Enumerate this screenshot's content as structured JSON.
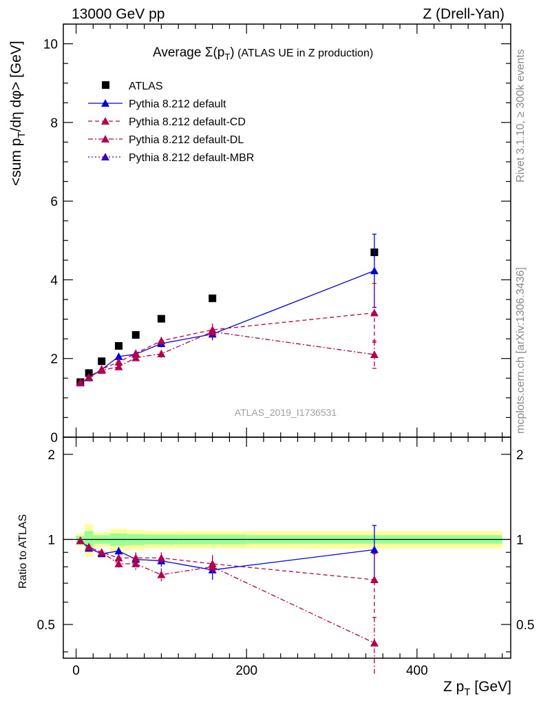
{
  "header": {
    "energy": "13000 GeV pp",
    "process": "Z (Drell-Yan)"
  },
  "side": {
    "rivet": "Rivet 3.1.10, ≥ 300k events",
    "source": "mcplots.cern.ch [arXiv:1306.3436]"
  },
  "watermark": "ATLAS_2019_I1736531",
  "colors": {
    "data": "#000000",
    "default": "#0000dd",
    "cd": "#b0004f",
    "dl": "#b0004f",
    "mbr": "#3a00b8",
    "band_outer": "#ffff99",
    "band_inner": "#99ff99"
  },
  "chart_data": [
    {
      "type": "scatter",
      "panel": "main",
      "title": "Average Σ(pT) (ATLAS UE in Z production)",
      "title_parts": {
        "lead": "Average ",
        "sigma": "Σ(p",
        "sub": "T",
        "tail": ")",
        "paren": " (ATLAS UE in Z production)"
      },
      "ylabel": "<sum pT/dη dφ> [GeV]",
      "ylabel_parts": {
        "a": "<sum p",
        "sub": "T",
        "b": "/dη dφ> [GeV]"
      },
      "xlim": [
        -15,
        510
      ],
      "ylim": [
        0,
        10.5
      ],
      "yticks": [
        0,
        2,
        4,
        6,
        8,
        10
      ],
      "legend_position": "top-left",
      "series": [
        {
          "name": "ATLAS",
          "key": "data",
          "marker": "square",
          "line": "none",
          "x": [
            5,
            15,
            30,
            50,
            70,
            100,
            160,
            350
          ],
          "y": [
            1.4,
            1.63,
            1.93,
            2.32,
            2.6,
            3.01,
            3.53,
            4.7
          ]
        },
        {
          "name": "Pythia 8.212 default",
          "key": "default",
          "marker": "triangle",
          "line": "solid",
          "x": [
            5,
            15,
            30,
            50,
            70,
            100,
            160,
            350
          ],
          "y": [
            1.38,
            1.51,
            1.72,
            2.05,
            2.11,
            2.38,
            2.62,
            4.23
          ],
          "err": [
            0.02,
            0.02,
            0.04,
            0.06,
            0.08,
            0.1,
            0.16,
            0.93
          ]
        },
        {
          "name": "Pythia 8.212 default-CD",
          "key": "cd",
          "marker": "triangle",
          "line": "dashed",
          "x": [
            5,
            15,
            30,
            50,
            70,
            100,
            160,
            350
          ],
          "y": [
            1.39,
            1.53,
            1.73,
            1.91,
            2.13,
            2.45,
            2.73,
            3.16
          ],
          "err": [
            0.02,
            0.02,
            0.04,
            0.06,
            0.08,
            0.1,
            0.16,
            0.75
          ]
        },
        {
          "name": "Pythia 8.212 default-DL",
          "key": "dl",
          "marker": "triangle",
          "line": "dashdot",
          "x": [
            5,
            15,
            30,
            50,
            70,
            100,
            160,
            350
          ],
          "y": [
            1.39,
            1.52,
            1.7,
            1.79,
            2.02,
            2.12,
            2.68,
            2.1
          ],
          "err": [
            0.02,
            0.02,
            0.04,
            0.06,
            0.08,
            0.1,
            0.16,
            0.35
          ]
        },
        {
          "name": "Pythia 8.212 default-MBR",
          "key": "mbr",
          "marker": "triangle",
          "line": "dotted",
          "x": [],
          "y": []
        }
      ]
    },
    {
      "type": "scatter",
      "panel": "ratio",
      "xlabel": "Z pT [GeV]",
      "xlabel_parts": {
        "a": "Z p",
        "sub": "T",
        "b": " [GeV]"
      },
      "ylabel": "Ratio to ATLAS",
      "xlim": [
        -15,
        510
      ],
      "ylim": [
        0.38,
        2.3
      ],
      "yticks": [
        0.5,
        1,
        2
      ],
      "ytick_labels": [
        "0.5",
        "1",
        "2"
      ],
      "xticks": [
        0,
        200,
        400
      ],
      "xtick_labels": [
        "0",
        "200",
        "400"
      ],
      "bands": {
        "edges": [
          0,
          10,
          20,
          40,
          60,
          80,
          120,
          200,
          500
        ],
        "outer": [
          0.05,
          0.13,
          0.06,
          0.09,
          0.08,
          0.07,
          0.07,
          0.07
        ],
        "inner": [
          0.03,
          0.07,
          0.035,
          0.05,
          0.045,
          0.04,
          0.04,
          0.035
        ]
      },
      "series": [
        {
          "name": "Pythia 8.212 default",
          "key": "default",
          "line": "solid",
          "x": [
            5,
            15,
            30,
            50,
            70,
            100,
            160,
            350
          ],
          "y": [
            0.99,
            0.93,
            0.89,
            0.91,
            0.85,
            0.84,
            0.78,
            0.92
          ],
          "err": [
            0.02,
            0.02,
            0.02,
            0.03,
            0.04,
            0.04,
            0.06,
            0.2
          ]
        },
        {
          "name": "Pythia 8.212 default-CD",
          "key": "cd",
          "line": "dashed",
          "x": [
            5,
            15,
            30,
            50,
            70,
            100,
            160,
            350
          ],
          "y": [
            0.99,
            0.94,
            0.9,
            0.86,
            0.86,
            0.86,
            0.82,
            0.72
          ],
          "err": [
            0.02,
            0.02,
            0.02,
            0.03,
            0.04,
            0.04,
            0.06,
            0.17
          ]
        },
        {
          "name": "Pythia 8.212 default-DL",
          "key": "dl",
          "line": "dashdot",
          "x": [
            5,
            15,
            30,
            50,
            70,
            100,
            160,
            350
          ],
          "y": [
            0.99,
            0.94,
            0.9,
            0.82,
            0.82,
            0.75,
            0.8,
            0.43
          ],
          "err": [
            0.02,
            0.02,
            0.02,
            0.03,
            0.04,
            0.04,
            0.06,
            0.1
          ]
        }
      ]
    }
  ]
}
